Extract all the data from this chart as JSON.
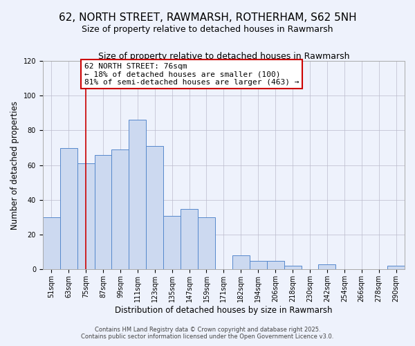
{
  "title": "62, NORTH STREET, RAWMARSH, ROTHERHAM, S62 5NH",
  "subtitle": "Size of property relative to detached houses in Rawmarsh",
  "xlabel": "Distribution of detached houses by size in Rawmarsh",
  "ylabel": "Number of detached properties",
  "bin_labels": [
    "51sqm",
    "63sqm",
    "75sqm",
    "87sqm",
    "99sqm",
    "111sqm",
    "123sqm",
    "135sqm",
    "147sqm",
    "159sqm",
    "171sqm",
    "182sqm",
    "194sqm",
    "206sqm",
    "218sqm",
    "230sqm",
    "242sqm",
    "254sqm",
    "266sqm",
    "278sqm",
    "290sqm"
  ],
  "bar_values": [
    30,
    70,
    61,
    66,
    69,
    86,
    71,
    31,
    35,
    30,
    0,
    8,
    5,
    5,
    2,
    0,
    3,
    0,
    0,
    0,
    2
  ],
  "bar_color": "#ccd9f0",
  "bar_edge_color": "#5588cc",
  "vline_x_index": 2,
  "vline_color": "#cc0000",
  "ylim": [
    0,
    120
  ],
  "yticks": [
    0,
    20,
    40,
    60,
    80,
    100,
    120
  ],
  "annotation_title": "62 NORTH STREET: 76sqm",
  "annotation_line1": "← 18% of detached houses are smaller (100)",
  "annotation_line2": "81% of semi-detached houses are larger (463) →",
  "footer1": "Contains HM Land Registry data © Crown copyright and database right 2025.",
  "footer2": "Contains public sector information licensed under the Open Government Licence v3.0.",
  "bg_color": "#eef2fc",
  "plot_bg_color": "#eef2fc",
  "title_fontsize": 11,
  "subtitle_fontsize": 9,
  "axis_label_fontsize": 8.5,
  "tick_fontsize": 7,
  "annotation_fontsize": 8,
  "footer_fontsize": 6
}
